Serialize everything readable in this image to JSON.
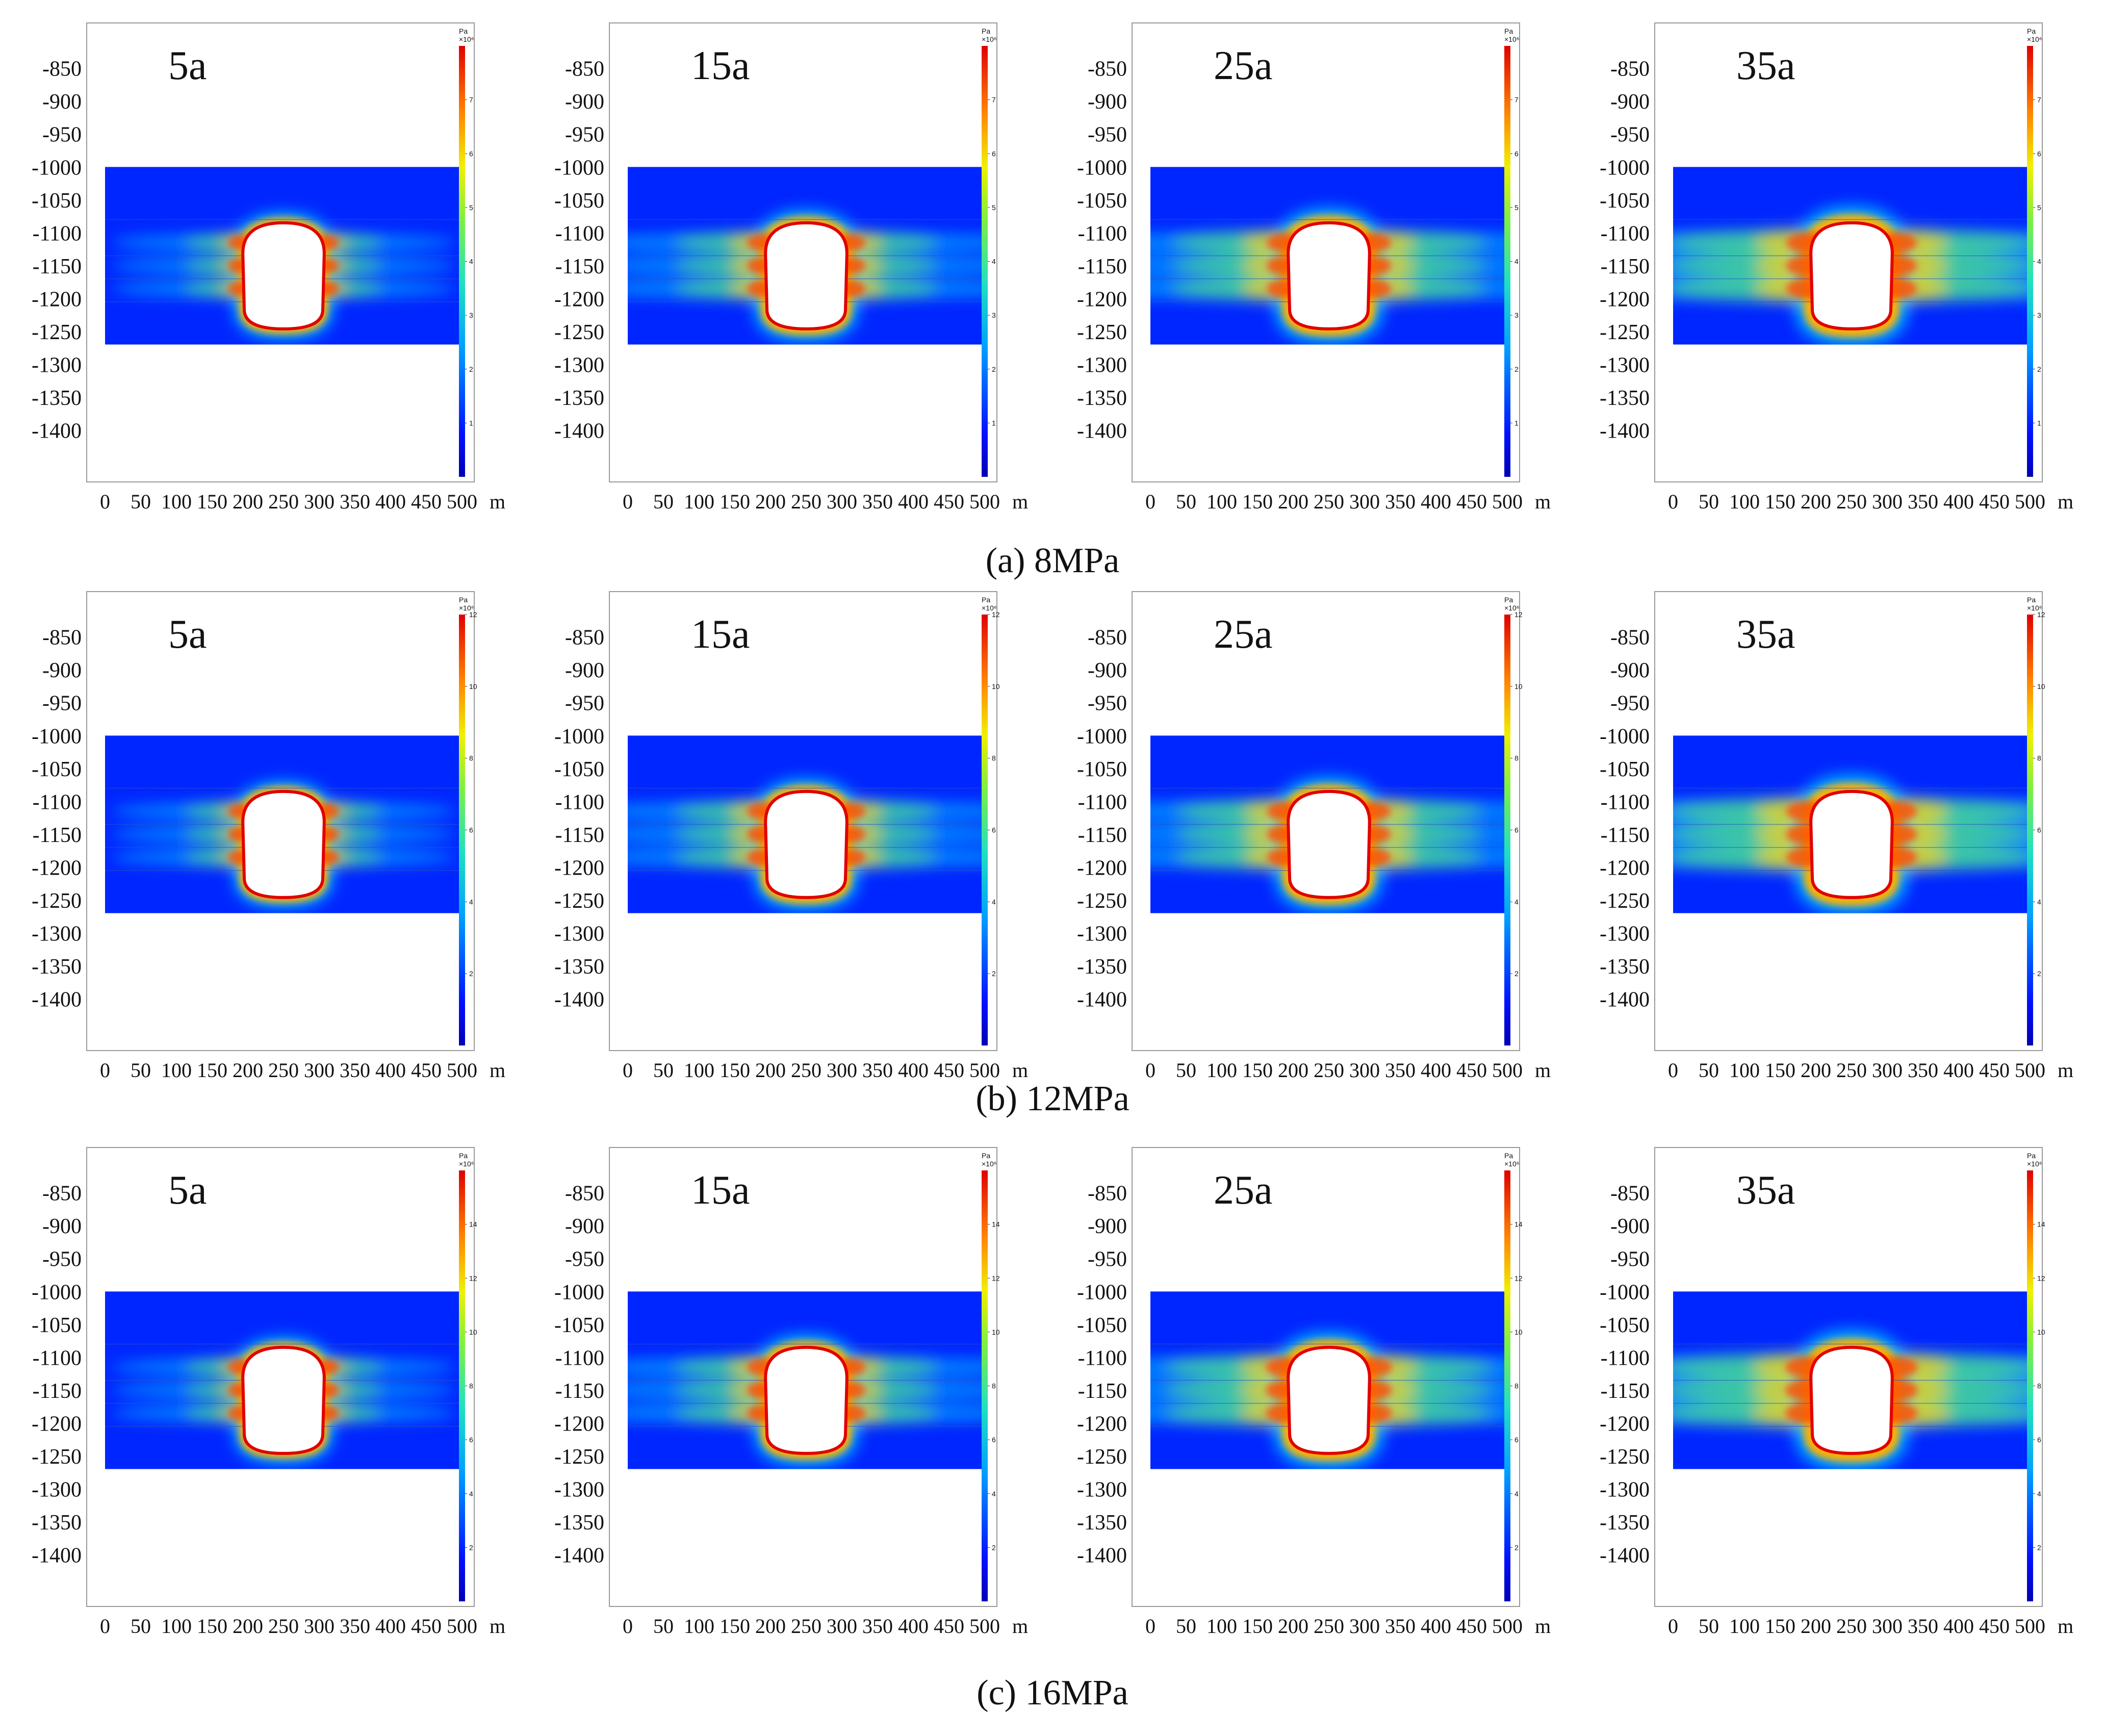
{
  "chart_data": [
    {
      "type": "heatmap",
      "row_label": "(a) 8MPa",
      "x_ticks": [
        0,
        50,
        100,
        150,
        200,
        250,
        300,
        350,
        400,
        450,
        500
      ],
      "y_ticks": [
        -850,
        -900,
        -950,
        -1000,
        -1050,
        -1100,
        -1150,
        -1200,
        -1250,
        -1300,
        -1350,
        -1400
      ],
      "x_unit": "m",
      "xlim": [
        0,
        500
      ],
      "ylim": [
        -1440,
        -820
      ],
      "domain": {
        "x": [
          0,
          500
        ],
        "y": [
          -1270,
          -1000
        ]
      },
      "colorbar": {
        "unit": "Pa",
        "scale": "×10⁶",
        "min": 0,
        "max": 8,
        "ticks": [
          1,
          2,
          3,
          4,
          5,
          6,
          7
        ]
      },
      "panels": [
        {
          "time": "5a",
          "spread": 0.3
        },
        {
          "time": "15a",
          "spread": 0.55
        },
        {
          "time": "25a",
          "spread": 0.75
        },
        {
          "time": "35a",
          "spread": 0.95
        }
      ]
    },
    {
      "type": "heatmap",
      "row_label": "(b) 12MPa",
      "x_ticks": [
        0,
        50,
        100,
        150,
        200,
        250,
        300,
        350,
        400,
        450,
        500
      ],
      "y_ticks": [
        -850,
        -900,
        -950,
        -1000,
        -1050,
        -1100,
        -1150,
        -1200,
        -1250,
        -1300,
        -1350,
        -1400
      ],
      "x_unit": "m",
      "xlim": [
        0,
        500
      ],
      "ylim": [
        -1440,
        -820
      ],
      "domain": {
        "x": [
          0,
          500
        ],
        "y": [
          -1270,
          -1000
        ]
      },
      "colorbar": {
        "unit": "Pa",
        "scale": "×10⁶",
        "min": 0,
        "max": 12,
        "ticks": [
          2,
          4,
          6,
          8,
          10,
          12
        ]
      },
      "panels": [
        {
          "time": "5a",
          "spread": 0.3
        },
        {
          "time": "15a",
          "spread": 0.55
        },
        {
          "time": "25a",
          "spread": 0.72
        },
        {
          "time": "35a",
          "spread": 0.95
        }
      ]
    },
    {
      "type": "heatmap",
      "row_label": "(c) 16MPa",
      "x_ticks": [
        0,
        50,
        100,
        150,
        200,
        250,
        300,
        350,
        400,
        450,
        500
      ],
      "y_ticks": [
        -850,
        -900,
        -950,
        -1000,
        -1050,
        -1100,
        -1150,
        -1200,
        -1250,
        -1300,
        -1350,
        -1400
      ],
      "x_unit": "m",
      "xlim": [
        0,
        500
      ],
      "ylim": [
        -1440,
        -820
      ],
      "domain": {
        "x": [
          0,
          500
        ],
        "y": [
          -1270,
          -1000
        ]
      },
      "colorbar": {
        "unit": "Pa",
        "scale": "×10⁶",
        "min": 0,
        "max": 16,
        "ticks": [
          2,
          4,
          6,
          8,
          10,
          12,
          14
        ]
      },
      "panels": [
        {
          "time": "5a",
          "spread": 0.3
        },
        {
          "time": "15a",
          "spread": 0.55
        },
        {
          "time": "25a",
          "spread": 0.8
        },
        {
          "time": "35a",
          "spread": 1.0
        }
      ]
    }
  ]
}
